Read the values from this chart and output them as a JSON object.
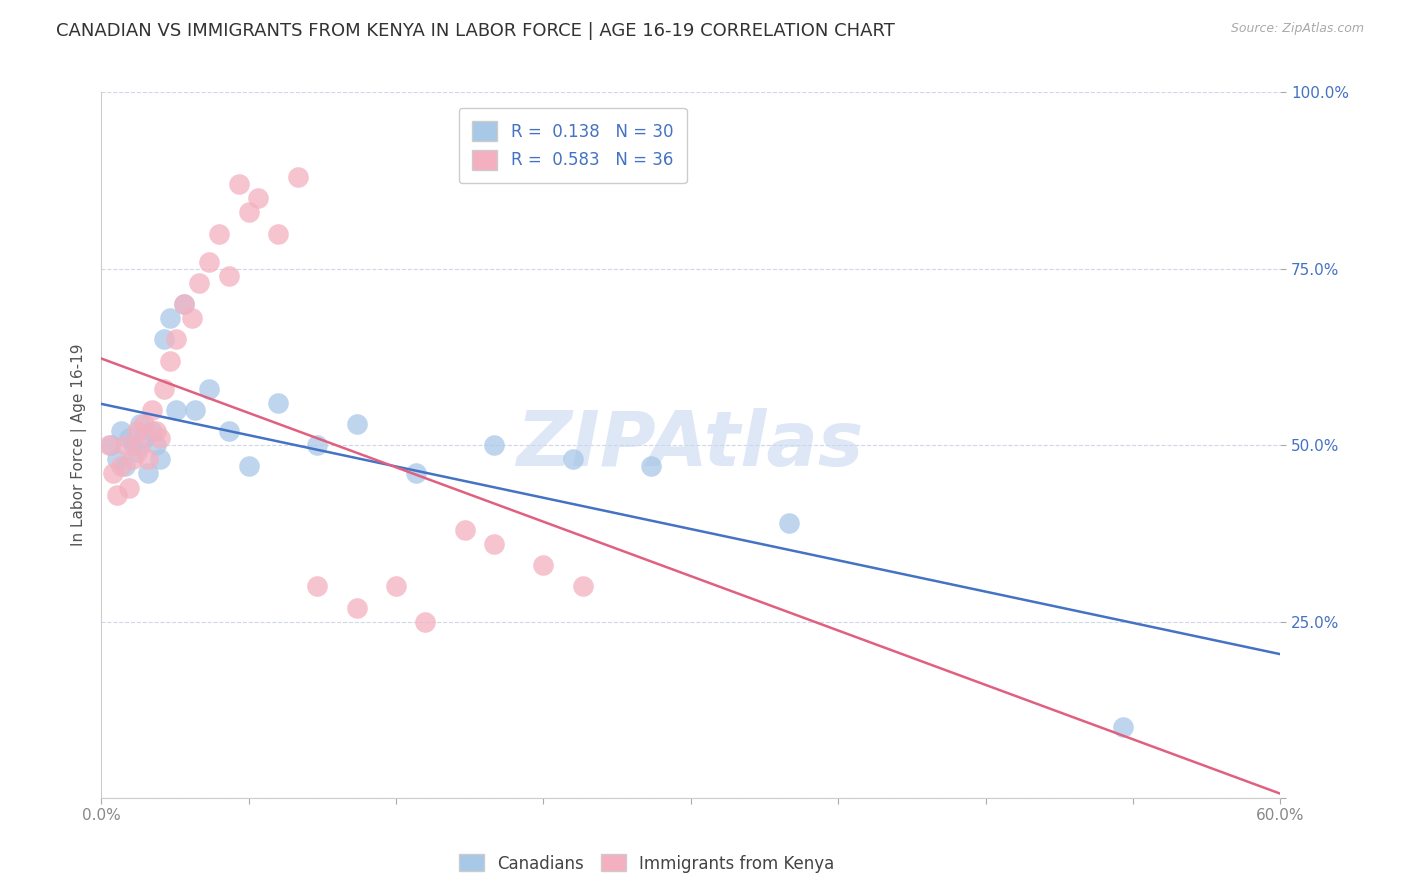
{
  "title": "CANADIAN VS IMMIGRANTS FROM KENYA IN LABOR FORCE | AGE 16-19 CORRELATION CHART",
  "source": "Source: ZipAtlas.com",
  "ylabel": "In Labor Force | Age 16-19",
  "xlim": [
    0.0,
    0.6
  ],
  "ylim": [
    0.0,
    1.0
  ],
  "xticks": [
    0.0,
    0.075,
    0.15,
    0.225,
    0.3,
    0.375,
    0.45,
    0.525,
    0.6
  ],
  "xticklabels_ends": [
    "0.0%",
    "60.0%"
  ],
  "yticks": [
    0.0,
    0.25,
    0.5,
    0.75,
    1.0
  ],
  "yticklabels": [
    "",
    "25.0%",
    "50.0%",
    "75.0%",
    "100.0%"
  ],
  "canadians_x": [
    0.005,
    0.008,
    0.01,
    0.012,
    0.014,
    0.016,
    0.018,
    0.02,
    0.022,
    0.024,
    0.026,
    0.028,
    0.03,
    0.032,
    0.035,
    0.038,
    0.042,
    0.048,
    0.055,
    0.065,
    0.075,
    0.09,
    0.11,
    0.13,
    0.16,
    0.2,
    0.24,
    0.28,
    0.35,
    0.52
  ],
  "canadians_y": [
    0.5,
    0.48,
    0.52,
    0.47,
    0.51,
    0.5,
    0.49,
    0.53,
    0.51,
    0.46,
    0.52,
    0.5,
    0.48,
    0.65,
    0.68,
    0.55,
    0.7,
    0.55,
    0.58,
    0.52,
    0.47,
    0.56,
    0.5,
    0.53,
    0.46,
    0.5,
    0.48,
    0.47,
    0.39,
    0.1
  ],
  "kenya_x": [
    0.004,
    0.006,
    0.008,
    0.01,
    0.012,
    0.014,
    0.016,
    0.018,
    0.02,
    0.022,
    0.024,
    0.026,
    0.028,
    0.03,
    0.032,
    0.035,
    0.038,
    0.042,
    0.046,
    0.05,
    0.055,
    0.06,
    0.065,
    0.07,
    0.075,
    0.08,
    0.09,
    0.1,
    0.11,
    0.13,
    0.15,
    0.165,
    0.185,
    0.2,
    0.225,
    0.245
  ],
  "kenya_y": [
    0.5,
    0.46,
    0.43,
    0.47,
    0.5,
    0.44,
    0.48,
    0.52,
    0.5,
    0.53,
    0.48,
    0.55,
    0.52,
    0.51,
    0.58,
    0.62,
    0.65,
    0.7,
    0.68,
    0.73,
    0.76,
    0.8,
    0.74,
    0.87,
    0.83,
    0.85,
    0.8,
    0.88,
    0.3,
    0.27,
    0.3,
    0.25,
    0.38,
    0.36,
    0.33,
    0.3
  ],
  "R_canadians": 0.138,
  "N_canadians": 30,
  "R_kenya": 0.583,
  "N_kenya": 36,
  "color_canadians": "#a8c8e8",
  "color_kenya": "#f4b0c0",
  "trendline_canadians": "#4472c4",
  "trendline_kenya": "#e06080",
  "watermark": "ZIPAtlas",
  "watermark_color": "#c8d8f0",
  "background_color": "#ffffff",
  "grid_color": "#d0d8e8",
  "title_fontsize": 13,
  "axis_label_fontsize": 11,
  "tick_fontsize": 11,
  "legend_fontsize": 12,
  "ytick_color": "#4472c4",
  "xtick_color": "#888888"
}
